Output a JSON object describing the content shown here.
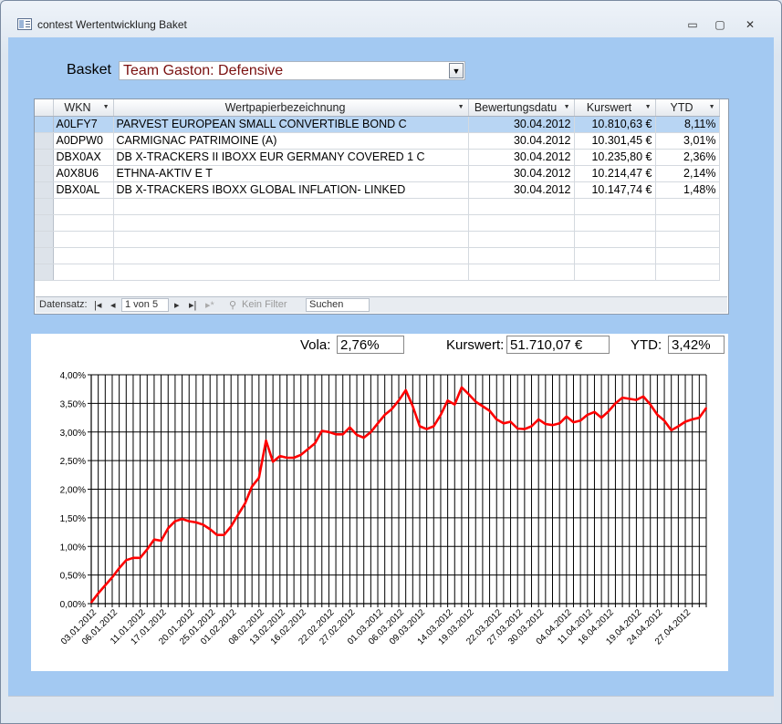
{
  "window": {
    "title": "contest Wertentwicklung Baket",
    "minimize_glyph": "▭",
    "maximize_glyph": "▢",
    "close_glyph": "✕"
  },
  "basket": {
    "label": "Basket",
    "selected": "Team Gaston: Defensive",
    "dropdown_glyph": "▼"
  },
  "table": {
    "columns": [
      "WKN",
      "Wertpapierbezeichnung",
      "Bewertungsdatu",
      "Kurswert",
      "YTD"
    ],
    "rows": [
      [
        "A0LFY7",
        "PARVEST EUROPEAN SMALL CONVERTIBLE BOND C",
        "30.04.2012",
        "10.810,63 €",
        "8,11%"
      ],
      [
        "A0DPW0",
        "CARMIGNAC PATRIMOINE (A)",
        "30.04.2012",
        "10.301,45 €",
        "3,01%"
      ],
      [
        "DBX0AX",
        "DB X-TRACKERS II IBOXX EUR GERMANY COVERED 1 C",
        "30.04.2012",
        "10.235,80 €",
        "2,36%"
      ],
      [
        "A0X8U6",
        "ETHNA-AKTIV E T",
        "30.04.2012",
        "10.214,47 €",
        "2,14%"
      ],
      [
        "DBX0AL",
        "DB X-TRACKERS IBOXX GLOBAL INFLATION- LINKED",
        "30.04.2012",
        "10.147,74 €",
        "1,48%"
      ]
    ],
    "selected_row": 0
  },
  "navigation": {
    "label": "Datensatz:",
    "first": "|◂",
    "prev": "◂",
    "record": "1 von 5",
    "next": "▸",
    "last": "▸|",
    "new": "▸*",
    "filter": "Kein Filter",
    "search": "Suchen"
  },
  "stats": {
    "vola_label": "Vola:",
    "vola_value": "2,76%",
    "kurswert_label": "Kurswert:",
    "kurswert_value": "51.710,07 €",
    "ytd_label": "YTD:",
    "ytd_value": "3,42%"
  },
  "colors": {
    "line": "#ff0000",
    "client_bg": "#a3c9f2",
    "selected_row": "#b8d5f3"
  },
  "chart_data": {
    "type": "line",
    "ylim": [
      0,
      4
    ],
    "yticks": [
      "0,00%",
      "0,50%",
      "1,00%",
      "1,50%",
      "2,00%",
      "2,50%",
      "3,00%",
      "3,50%",
      "4,00%"
    ],
    "xtick_labels": [
      "03.01.2012",
      "06.01.2012",
      "11.01.2012",
      "17.01.2012",
      "20.01.2012",
      "25.01.2012",
      "01.02.2012",
      "08.02.2012",
      "13.02.2012",
      "16.02.2012",
      "22.02.2012",
      "27.02.2012",
      "01.03.2012",
      "06.03.2012",
      "09.03.2012",
      "14.03.2012",
      "19.03.2012",
      "22.03.2012",
      "27.03.2012",
      "30.03.2012",
      "04.04.2012",
      "11.04.2012",
      "16.04.2012",
      "19.04.2012",
      "24.04.2012",
      "27.04.2012"
    ],
    "grid": true,
    "series": [
      {
        "values": [
          0.02,
          0.18,
          0.32,
          0.46,
          0.62,
          0.76,
          0.8,
          0.8,
          0.95,
          1.12,
          1.1,
          1.32,
          1.44,
          1.48,
          1.44,
          1.42,
          1.38,
          1.3,
          1.2,
          1.2,
          1.35,
          1.55,
          1.75,
          2.05,
          2.2,
          2.85,
          2.48,
          2.58,
          2.55,
          2.55,
          2.6,
          2.7,
          2.8,
          3.02,
          3.0,
          2.96,
          2.96,
          3.08,
          2.95,
          2.9,
          3.0,
          3.15,
          3.3,
          3.4,
          3.55,
          3.73,
          3.45,
          3.1,
          3.05,
          3.1,
          3.3,
          3.55,
          3.48,
          3.78,
          3.66,
          3.53,
          3.45,
          3.37,
          3.22,
          3.15,
          3.18,
          3.06,
          3.05,
          3.1,
          3.22,
          3.14,
          3.12,
          3.15,
          3.27,
          3.17,
          3.2,
          3.3,
          3.35,
          3.25,
          3.36,
          3.5,
          3.6,
          3.58,
          3.56,
          3.62,
          3.48,
          3.3,
          3.2,
          3.03,
          3.1,
          3.18,
          3.22,
          3.25,
          3.42
        ]
      }
    ]
  }
}
